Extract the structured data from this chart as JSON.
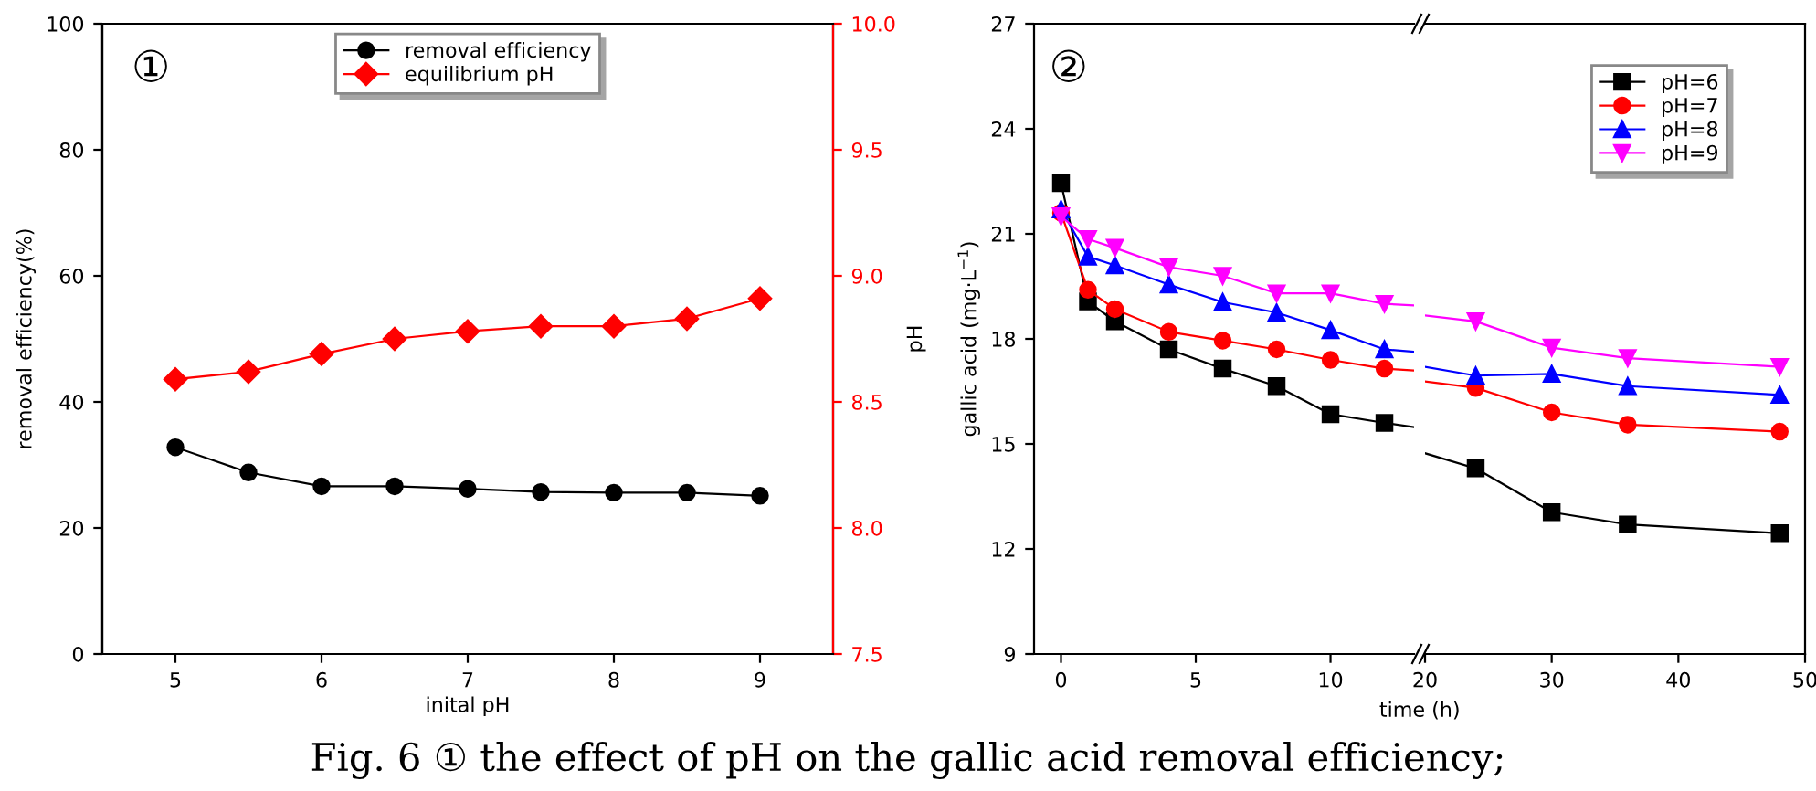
{
  "chart_data": [
    {
      "type": "line",
      "x": [
        5,
        5.5,
        6,
        6.5,
        7,
        7.5,
        8,
        8.5,
        9
      ],
      "xlabel": "inital pH",
      "ylabel": "removal efficiency(%)",
      "y2label": "pH",
      "series": [
        {
          "name": "removal efficiency",
          "color": "#000000",
          "marker": "circle",
          "values": [
            32.8,
            28.8,
            26.6,
            26.6,
            26.2,
            25.7,
            25.6,
            25.6,
            25.1
          ]
        },
        {
          "name": "equilibrium pH",
          "color": "#ff0000",
          "marker": "diamond",
          "axis": "y2",
          "values": [
            8.59,
            8.62,
            8.69,
            8.75,
            8.78,
            8.8,
            8.8,
            8.83,
            8.91
          ]
        }
      ],
      "xlim": [
        4.5,
        9.5
      ],
      "xticks": [
        5,
        6,
        7,
        8,
        9
      ],
      "ylim": [
        0,
        100
      ],
      "yticks": [
        0,
        20,
        40,
        60,
        80,
        100
      ],
      "y2lim": [
        7.5,
        10
      ],
      "y2ticks": [
        {
          "value": 7.5,
          "label": "7.5"
        },
        {
          "value": 8,
          "label": "8.0"
        },
        {
          "value": 8.5,
          "label": "8.5"
        },
        {
          "value": 9,
          "label": "9.0"
        },
        {
          "value": 9.5,
          "label": "9.5"
        },
        {
          "value": 10,
          "label": "10.0"
        }
      ],
      "legend": "top",
      "grid": false,
      "annotations": [
        "①",
        "Fig. 6 ① the effect of pH on the gallic acid removal efficiency;"
      ]
    },
    {
      "type": "line",
      "x": [
        0,
        1,
        2,
        4,
        6,
        8,
        10,
        12
      ],
      "xlabel": "time (h)",
      "ylabel": "gallic acid (mg·L$^{−1}$)",
      "series": [
        {
          "name": "pH=6",
          "color": "#000000",
          "marker": "square",
          "values": [
            22.45,
            19.07,
            18.5,
            17.7,
            17.15,
            16.65,
            15.85,
            15.6
          ]
        },
        {
          "name": "pH=7",
          "color": "#ff0000",
          "marker": "circle",
          "values": [
            21.6,
            19.4,
            18.85,
            18.2,
            17.95,
            17.7,
            17.4,
            17.15
          ]
        },
        {
          "name": "pH=8",
          "color": "#0000ff",
          "marker": "triangle",
          "values": [
            21.7,
            20.35,
            20.1,
            19.55,
            19.05,
            18.75,
            18.25,
            17.7
          ]
        },
        {
          "name": "pH=9",
          "color": "#ff00ff",
          "marker": "triangle_down",
          "values": [
            21.5,
            20.85,
            20.6,
            20.05,
            19.8,
            19.3,
            19.3,
            19.0
          ]
        }
      ],
      "xlim": [
        -1,
        13.1
      ],
      "xticks": [
        0,
        5,
        10
      ],
      "ylim": [
        9,
        27
      ],
      "yticks": [
        9,
        12,
        15,
        18,
        21,
        24,
        27
      ],
      "grid": false,
      "legend": "top right",
      "annotations": [
        "②"
      ]
    },
    {
      "type": "line",
      "x": [
        24,
        30,
        36,
        48
      ],
      "series": [
        {
          "color": "#000000",
          "marker": "square",
          "values": [
            14.3,
            13.05,
            12.7,
            12.45
          ]
        },
        {
          "color": "#ff0000",
          "marker": "circle",
          "values": [
            16.6,
            15.9,
            15.55,
            15.35
          ]
        },
        {
          "color": "#0000ff",
          "marker": "triangle",
          "values": [
            16.95,
            17.0,
            16.65,
            16.4
          ]
        },
        {
          "color": "#ff00ff",
          "marker": "triangle_down",
          "values": [
            18.5,
            17.75,
            17.45,
            17.2
          ]
        }
      ],
      "xlim": [
        20,
        50
      ],
      "xticks": [
        20,
        30,
        40,
        50
      ],
      "ylim": [
        9,
        27
      ],
      "yticks": [
        9,
        12,
        15,
        18,
        21,
        24,
        27
      ],
      "grid": false,
      "tick_labels": "x"
    }
  ]
}
